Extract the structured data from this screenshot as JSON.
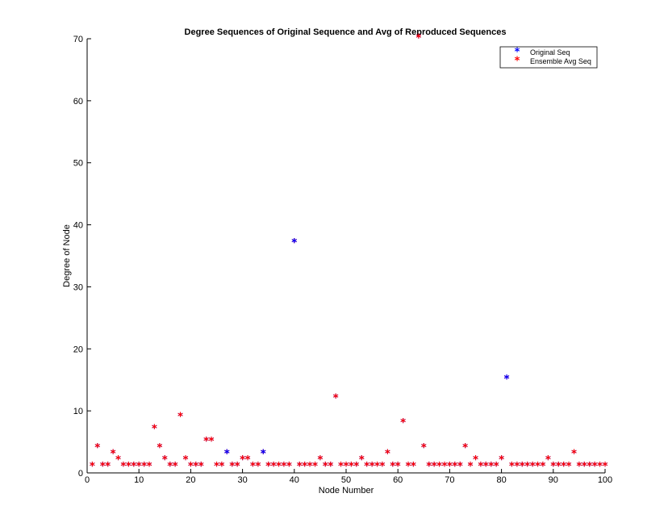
{
  "chart_data": {
    "type": "scatter",
    "title": "Degree Sequences of Original Sequence and Avg of Reproduced Sequences",
    "xlabel": "Node Number",
    "ylabel": "Degree of Node",
    "xlim": [
      0,
      100
    ],
    "ylim": [
      0,
      70
    ],
    "xticks": [
      0,
      10,
      20,
      30,
      40,
      50,
      60,
      70,
      80,
      90,
      100
    ],
    "yticks": [
      0,
      10,
      20,
      30,
      40,
      50,
      60,
      70
    ],
    "grid": false,
    "legend_position": "top-right",
    "marker": "*",
    "series": [
      {
        "name": "Original Seq",
        "color": "#0000ff",
        "x": [
          1,
          2,
          3,
          4,
          5,
          6,
          7,
          8,
          9,
          10,
          11,
          12,
          13,
          14,
          15,
          16,
          17,
          18,
          19,
          20,
          21,
          22,
          23,
          24,
          25,
          26,
          27,
          28,
          29,
          30,
          31,
          32,
          33,
          34,
          35,
          36,
          37,
          38,
          39,
          40,
          41,
          42,
          43,
          44,
          45,
          46,
          47,
          48,
          49,
          50,
          51,
          52,
          53,
          54,
          55,
          56,
          57,
          58,
          59,
          60,
          61,
          62,
          63,
          64,
          65,
          66,
          67,
          68,
          69,
          70,
          71,
          72,
          73,
          74,
          75,
          76,
          77,
          78,
          79,
          80,
          81,
          82,
          83,
          84,
          85,
          86,
          87,
          88,
          89,
          90,
          91,
          92,
          93,
          94,
          95,
          96,
          97,
          98,
          99,
          100
        ],
        "values": [
          1,
          4,
          1,
          1,
          3,
          2,
          1,
          1,
          1,
          1,
          1,
          1,
          7,
          4,
          2,
          1,
          1,
          9,
          2,
          1,
          1,
          1,
          5,
          5,
          1,
          1,
          3,
          1,
          1,
          2,
          2,
          1,
          1,
          3,
          1,
          1,
          1,
          1,
          1,
          37,
          1,
          1,
          1,
          1,
          2,
          1,
          1,
          12,
          1,
          1,
          1,
          1,
          2,
          1,
          1,
          1,
          1,
          3,
          1,
          1,
          8,
          1,
          1,
          70,
          4,
          1,
          1,
          1,
          1,
          1,
          1,
          1,
          4,
          1,
          2,
          1,
          1,
          1,
          1,
          2,
          15,
          1,
          1,
          1,
          1,
          1,
          1,
          1,
          2,
          1,
          1,
          1,
          1,
          3,
          1,
          1,
          1,
          1,
          1,
          1
        ]
      },
      {
        "name": "Ensemble Avg Seq",
        "color": "#ff0000",
        "x": [
          1,
          2,
          3,
          4,
          5,
          6,
          7,
          8,
          9,
          10,
          11,
          12,
          13,
          14,
          15,
          16,
          17,
          18,
          19,
          20,
          21,
          22,
          23,
          24,
          25,
          26,
          27,
          28,
          29,
          30,
          31,
          32,
          33,
          34,
          35,
          36,
          37,
          38,
          39,
          40,
          41,
          42,
          43,
          44,
          45,
          46,
          47,
          48,
          49,
          50,
          51,
          52,
          53,
          54,
          55,
          56,
          57,
          58,
          59,
          60,
          61,
          62,
          63,
          64,
          65,
          66,
          67,
          68,
          69,
          70,
          71,
          72,
          73,
          74,
          75,
          76,
          77,
          78,
          79,
          80,
          81,
          82,
          83,
          84,
          85,
          86,
          87,
          88,
          89,
          90,
          91,
          92,
          93,
          94,
          95,
          96,
          97,
          98,
          99,
          100
        ],
        "values": [
          1,
          4,
          1,
          1,
          3,
          2,
          1,
          1,
          1,
          1,
          1,
          1,
          7,
          4,
          2,
          1,
          1,
          9,
          2,
          1,
          1,
          1,
          5,
          5,
          1,
          1,
          3,
          1,
          1,
          2,
          2,
          1,
          1,
          3,
          1,
          1,
          1,
          1,
          1,
          37,
          1,
          1,
          1,
          1,
          2,
          1,
          1,
          12,
          1,
          1,
          1,
          1,
          2,
          1,
          1,
          1,
          1,
          3,
          1,
          1,
          8,
          1,
          1,
          70,
          4,
          1,
          1,
          1,
          1,
          1,
          1,
          1,
          4,
          1,
          2,
          1,
          1,
          1,
          1,
          2,
          15,
          1,
          1,
          1,
          1,
          1,
          1,
          1,
          2,
          1,
          1,
          1,
          1,
          3,
          1,
          1,
          1,
          1,
          1,
          1
        ]
      }
    ],
    "overlap_visible_x": [
      27,
      34,
      40,
      81
    ]
  }
}
